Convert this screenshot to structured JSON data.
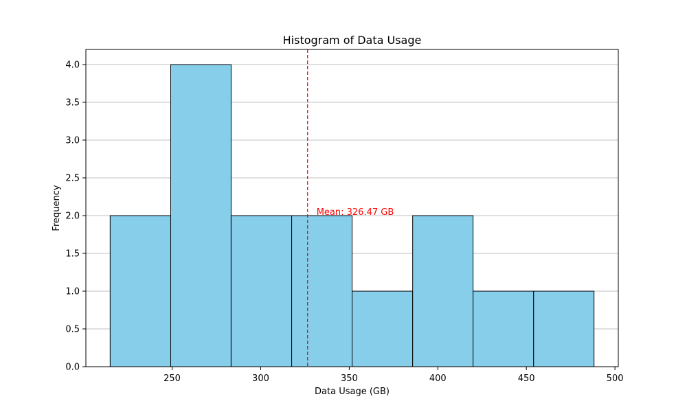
{
  "chart_data": {
    "type": "bar",
    "title": "Histogram of Data Usage",
    "xlabel": "Data Usage (GB)",
    "ylabel": "Frequency",
    "bin_edges": [
      215.0,
      249.2,
      283.3,
      317.5,
      351.6,
      385.8,
      419.9,
      454.1,
      488.2
    ],
    "values": [
      2,
      4,
      2,
      2,
      1,
      2,
      1,
      1
    ],
    "xlim": [
      201.3,
      501.9
    ],
    "ylim": [
      0,
      4.2
    ],
    "xticks": [
      250,
      300,
      350,
      400,
      450,
      500
    ],
    "yticks": [
      0.0,
      0.5,
      1.0,
      1.5,
      2.0,
      2.5,
      3.0,
      3.5,
      4.0
    ],
    "ytick_labels": [
      "0.0",
      "0.5",
      "1.0",
      "1.5",
      "2.0",
      "2.5",
      "3.0",
      "3.5",
      "4.0"
    ],
    "grid": {
      "axis": "y",
      "on": true
    },
    "mean_line": {
      "x": 326.47,
      "label": "Mean: 326.47 GB",
      "label_y": 2.0,
      "color": "#ff0000",
      "style": "dashed"
    },
    "bar_color": "#87ceeb",
    "bar_edge_color": "#000000",
    "grid_color": "#c0c0c0"
  }
}
